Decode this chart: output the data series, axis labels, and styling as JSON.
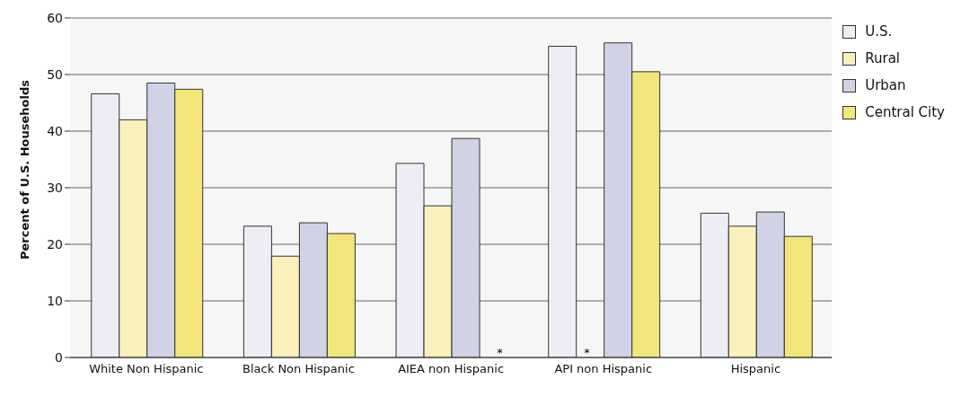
{
  "chart_data": {
    "type": "bar",
    "ylabel": "Percent of U.S. Households",
    "categories": [
      "White Non Hispanic",
      "Black Non Hispanic",
      "AIEA non Hispanic",
      "API non Hispanic",
      "Hispanic"
    ],
    "series": [
      {
        "name": "U.S.",
        "color": "#ededf5",
        "values": [
          46.6,
          23.2,
          34.3,
          55.0,
          25.5
        ]
      },
      {
        "name": "Rural",
        "color": "#faf0bb",
        "values": [
          42.0,
          17.9,
          26.8,
          null,
          23.2
        ]
      },
      {
        "name": "Urban",
        "color": "#d2d2e6",
        "values": [
          48.5,
          23.8,
          38.7,
          55.6,
          25.7
        ]
      },
      {
        "name": "Central City",
        "color": "#f2e67a",
        "values": [
          47.4,
          21.9,
          null,
          50.5,
          21.4
        ]
      }
    ],
    "annotations": [
      "*",
      "*"
    ],
    "ylim": [
      0,
      60
    ],
    "yticks": [
      0,
      10,
      20,
      30,
      40,
      50,
      60
    ],
    "grid": "y",
    "legend": "top right"
  }
}
